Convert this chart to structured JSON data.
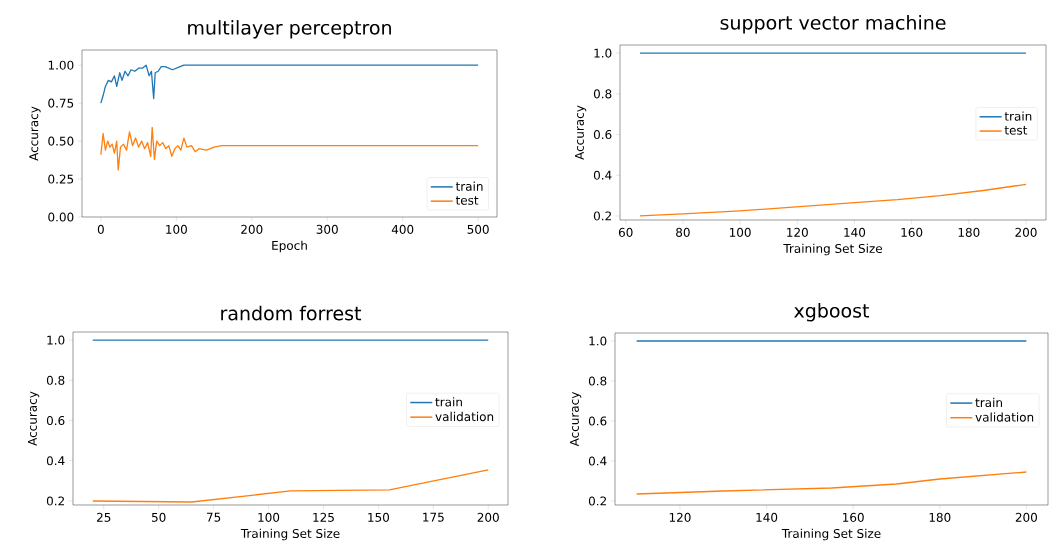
{
  "chart_data": [
    {
      "type": "line",
      "title": "multilayer perceptron",
      "xlabel": "Epoch",
      "ylabel": "Accuracy",
      "xlim": [
        -25,
        525
      ],
      "ylim": [
        0,
        1.1
      ],
      "xticks": [
        0,
        100,
        200,
        300,
        400,
        500
      ],
      "yticks": [
        {
          "value": 0,
          "label": "0.00"
        },
        {
          "value": 0.25,
          "label": "0.25"
        },
        {
          "value": 0.5,
          "label": "0.50"
        },
        {
          "value": 0.75,
          "label": "0.75"
        },
        {
          "value": 1,
          "label": "1.00"
        }
      ],
      "legend": "bottom right",
      "series": [
        {
          "name": "train",
          "color": "#1f77b4",
          "x": [
            0,
            3,
            6,
            10,
            14,
            18,
            21,
            25,
            28,
            32,
            36,
            40,
            45,
            50,
            55,
            60,
            64,
            67,
            70,
            72,
            76,
            80,
            85,
            90,
            95,
            100,
            105,
            110,
            500
          ],
          "values": [
            0.75,
            0.8,
            0.86,
            0.9,
            0.89,
            0.93,
            0.86,
            0.95,
            0.9,
            0.96,
            0.93,
            0.97,
            0.96,
            0.98,
            0.98,
            1.0,
            0.93,
            0.96,
            0.78,
            0.95,
            0.96,
            0.99,
            0.99,
            0.98,
            0.97,
            0.98,
            0.99,
            1.0,
            1.0
          ]
        },
        {
          "name": "test",
          "color": "#ff7f0e",
          "x": [
            0,
            3,
            6,
            9,
            12,
            15,
            18,
            21,
            23,
            26,
            30,
            34,
            38,
            42,
            46,
            50,
            54,
            58,
            62,
            66,
            68,
            71,
            74,
            78,
            82,
            86,
            90,
            94,
            98,
            102,
            106,
            110,
            114,
            120,
            125,
            130,
            140,
            150,
            160,
            175,
            190,
            500
          ],
          "values": [
            0.41,
            0.55,
            0.44,
            0.5,
            0.46,
            0.48,
            0.42,
            0.5,
            0.31,
            0.46,
            0.48,
            0.44,
            0.56,
            0.47,
            0.52,
            0.46,
            0.5,
            0.45,
            0.49,
            0.4,
            0.59,
            0.38,
            0.5,
            0.47,
            0.49,
            0.45,
            0.47,
            0.4,
            0.45,
            0.47,
            0.44,
            0.52,
            0.46,
            0.47,
            0.43,
            0.45,
            0.44,
            0.46,
            0.47,
            0.47,
            0.47,
            0.47
          ]
        }
      ]
    },
    {
      "type": "line",
      "title": "support vector machine",
      "xlabel": "Training Set Size",
      "ylabel": "Accuracy",
      "xlim": [
        58,
        207
      ],
      "ylim": [
        0.18,
        1.04
      ],
      "xticks": [
        60,
        80,
        100,
        120,
        140,
        160,
        180,
        200
      ],
      "yticks": [
        0.2,
        0.4,
        0.6,
        0.8,
        {
          "value": 1,
          "label": "1.0"
        }
      ],
      "legend": "right",
      "series": [
        {
          "name": "train",
          "color": "#1f77b4",
          "x": [
            65,
            200
          ],
          "values": [
            1.0,
            1.0
          ]
        },
        {
          "name": "test",
          "color": "#ff7f0e",
          "x": [
            65,
            80,
            100,
            120,
            140,
            155,
            170,
            185,
            200
          ],
          "values": [
            0.2,
            0.21,
            0.225,
            0.245,
            0.265,
            0.28,
            0.3,
            0.325,
            0.355
          ]
        }
      ]
    },
    {
      "type": "line",
      "title": "random forrest",
      "xlabel": "Training Set Size",
      "ylabel": "Accuracy",
      "xlim": [
        11,
        209
      ],
      "ylim": [
        0.18,
        1.04
      ],
      "xticks": [
        25,
        50,
        75,
        100,
        125,
        150,
        175,
        200
      ],
      "yticks": [
        0.2,
        0.4,
        0.6,
        0.8,
        {
          "value": 1,
          "label": "1.0"
        }
      ],
      "legend": "right",
      "series": [
        {
          "name": "train",
          "color": "#1f77b4",
          "x": [
            20,
            200
          ],
          "values": [
            1.0,
            1.0
          ]
        },
        {
          "name": "validation",
          "color": "#ff7f0e",
          "x": [
            20,
            65,
            110,
            155,
            200
          ],
          "values": [
            0.2,
            0.195,
            0.25,
            0.255,
            0.355
          ]
        }
      ]
    },
    {
      "type": "line",
      "title": "xgboost",
      "xlabel": "Training Set Size",
      "ylabel": "Accuracy",
      "xlim": [
        105,
        205
      ],
      "ylim": [
        0.18,
        1.04
      ],
      "xticks": [
        120,
        140,
        160,
        180,
        200
      ],
      "yticks": [
        0.2,
        0.4,
        0.6,
        0.8,
        {
          "value": 1,
          "label": "1.0"
        }
      ],
      "legend": "right",
      "series": [
        {
          "name": "train",
          "color": "#1f77b4",
          "x": [
            110,
            200
          ],
          "values": [
            1.0,
            1.0
          ]
        },
        {
          "name": "validation",
          "color": "#ff7f0e",
          "x": [
            110,
            130,
            155,
            170,
            180,
            200
          ],
          "values": [
            0.235,
            0.25,
            0.265,
            0.285,
            0.31,
            0.345
          ]
        }
      ]
    }
  ]
}
